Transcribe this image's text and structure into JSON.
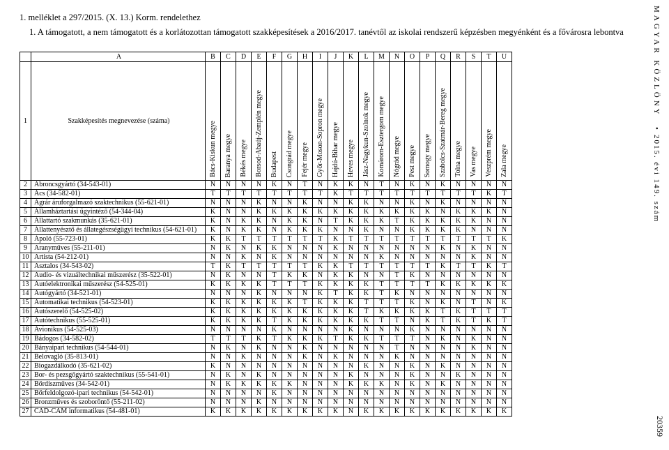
{
  "header": "1. melléklet a 297/2015. (X. 13.) Korm. rendelethez",
  "subtitle": "1. A támogatott, a nem támogatott és a korlátozottan támogatott szakképesítések a 2016/2017. tanévtől az iskolai rendszerű képzésben megyénként és a fővárosra lebontva",
  "letterRowPre": [
    "",
    "A"
  ],
  "letterRow": [
    "B",
    "C",
    "D",
    "E",
    "F",
    "G",
    "H",
    "I",
    "J",
    "K",
    "L",
    "M",
    "N",
    "O",
    "P",
    "Q",
    "R",
    "S",
    "T",
    "U"
  ],
  "row1": {
    "num": "1",
    "label": "Szakképesítés megnevezése (száma)"
  },
  "columns": [
    "Bács-Kiskun megye",
    "Baranya megye",
    "Békés megye",
    "Borsod-Abaúj-Zemplén megye",
    "Budapest",
    "Csongrád megye",
    "Fejér megye",
    "Győr-Moson-Sopron megye",
    "Hajdú-Bihar megye",
    "Heves megye",
    "Jász-Nagykun-Szolnok megye",
    "Komárom-Esztergom megye",
    "Nógrád megye",
    "Pest megye",
    "Somogy megye",
    "Szabolcs-Szatmár-Bereg megye",
    "Tolna megye",
    "Vas megye",
    "Veszprém megye",
    "Zala megye"
  ],
  "rows": [
    {
      "n": "2",
      "name": "Abroncsgyártó (34-543-01)",
      "c": [
        "N",
        "N",
        "N",
        "N",
        "K",
        "N",
        "T",
        "N",
        "K",
        "K",
        "N",
        "T",
        "N",
        "K",
        "N",
        "K",
        "N",
        "N",
        "N",
        "N"
      ]
    },
    {
      "n": "3",
      "name": "Ács (34-582-01)",
      "c": [
        "T",
        "T",
        "T",
        "T",
        "T",
        "T",
        "T",
        "T",
        "K",
        "T",
        "T",
        "T",
        "T",
        "T",
        "T",
        "T",
        "T",
        "T",
        "K",
        "T"
      ]
    },
    {
      "n": "4",
      "name": "Agrár áruforgalmazó szaktechnikus (55-621-01)",
      "c": [
        "N",
        "N",
        "N",
        "K",
        "N",
        "N",
        "K",
        "N",
        "N",
        "K",
        "K",
        "N",
        "N",
        "K",
        "N",
        "K",
        "N",
        "N",
        "N",
        "N"
      ]
    },
    {
      "n": "5",
      "name": "Államháztartási ügyintéző (54-344-04)",
      "c": [
        "K",
        "N",
        "N",
        "K",
        "K",
        "K",
        "K",
        "K",
        "K",
        "K",
        "K",
        "K",
        "K",
        "K",
        "K",
        "N",
        "K",
        "K",
        "K",
        "N"
      ]
    },
    {
      "n": "6",
      "name": "Állattartó szakmunkás (35-621-01)",
      "c": [
        "K",
        "N",
        "K",
        "K",
        "N",
        "K",
        "K",
        "N",
        "T",
        "K",
        "K",
        "K",
        "T",
        "K",
        "K",
        "K",
        "K",
        "K",
        "N",
        "N"
      ]
    },
    {
      "n": "7",
      "name": "Állattenyésztő és állategészségügyi technikus (54-621-01)",
      "c": [
        "K",
        "N",
        "K",
        "K",
        "N",
        "K",
        "K",
        "K",
        "N",
        "N",
        "K",
        "N",
        "N",
        "K",
        "K",
        "K",
        "K",
        "N",
        "N",
        "N"
      ]
    },
    {
      "n": "8",
      "name": "Ápoló (55-723-01)",
      "c": [
        "K",
        "K",
        "T",
        "T",
        "T",
        "T",
        "T",
        "T",
        "K",
        "T",
        "T",
        "T",
        "T",
        "T",
        "T",
        "T",
        "T",
        "T",
        "T",
        "K"
      ]
    },
    {
      "n": "9",
      "name": "Aranyműves (55-211-01)",
      "c": [
        "N",
        "K",
        "N",
        "K",
        "K",
        "N",
        "N",
        "N",
        "K",
        "N",
        "N",
        "N",
        "N",
        "N",
        "N",
        "K",
        "N",
        "K",
        "N",
        "N"
      ]
    },
    {
      "n": "10",
      "name": "Artista (54-212-01)",
      "c": [
        "N",
        "N",
        "K",
        "N",
        "K",
        "N",
        "N",
        "N",
        "N",
        "N",
        "N",
        "K",
        "N",
        "N",
        "N",
        "N",
        "N",
        "K",
        "N",
        "N"
      ]
    },
    {
      "n": "11",
      "name": "Asztalos (34-543-02)",
      "c": [
        "T",
        "K",
        "T",
        "T",
        "T",
        "T",
        "T",
        "K",
        "K",
        "T",
        "T",
        "T",
        "T",
        "T",
        "T",
        "K",
        "T",
        "T",
        "K",
        "T"
      ]
    },
    {
      "n": "12",
      "name": "Audio- és vizuáltechnikai műszerész (35-522-01)",
      "c": [
        "N",
        "K",
        "N",
        "N",
        "T",
        "K",
        "K",
        "N",
        "K",
        "K",
        "N",
        "N",
        "T",
        "K",
        "N",
        "N",
        "N",
        "N",
        "N",
        "N"
      ]
    },
    {
      "n": "13",
      "name": "Autóelektronikai műszerész (54-525-01)",
      "c": [
        "K",
        "K",
        "K",
        "K",
        "T",
        "T",
        "T",
        "K",
        "K",
        "K",
        "K",
        "T",
        "T",
        "T",
        "T",
        "K",
        "K",
        "K",
        "K",
        "K"
      ]
    },
    {
      "n": "14",
      "name": "Autógyártó (34-521-01)",
      "c": [
        "N",
        "N",
        "N",
        "K",
        "N",
        "N",
        "N",
        "K",
        "T",
        "K",
        "K",
        "T",
        "K",
        "N",
        "N",
        "N",
        "N",
        "N",
        "N",
        "N"
      ]
    },
    {
      "n": "15",
      "name": "Automatikai technikus (54-523-01)",
      "c": [
        "K",
        "K",
        "K",
        "K",
        "K",
        "K",
        "T",
        "K",
        "K",
        "K",
        "T",
        "T",
        "T",
        "K",
        "N",
        "K",
        "N",
        "T",
        "N",
        "K"
      ]
    },
    {
      "n": "16",
      "name": "Autószerelő (54-525-02)",
      "c": [
        "K",
        "K",
        "K",
        "K",
        "K",
        "K",
        "K",
        "K",
        "K",
        "K",
        "T",
        "K",
        "K",
        "K",
        "K",
        "T",
        "K",
        "T",
        "T",
        "T"
      ]
    },
    {
      "n": "17",
      "name": "Autótechnikus (55-525-01)",
      "c": [
        "K",
        "K",
        "K",
        "K",
        "T",
        "K",
        "K",
        "K",
        "K",
        "K",
        "K",
        "T",
        "T",
        "N",
        "K",
        "T",
        "K",
        "T",
        "K",
        "T"
      ]
    },
    {
      "n": "18",
      "name": "Avionikus (54-525-03)",
      "c": [
        "N",
        "N",
        "N",
        "N",
        "K",
        "N",
        "N",
        "N",
        "N",
        "K",
        "N",
        "N",
        "N",
        "K",
        "N",
        "N",
        "N",
        "N",
        "N",
        "N"
      ]
    },
    {
      "n": "19",
      "name": "Bádogos (34-582-02)",
      "c": [
        "T",
        "T",
        "T",
        "K",
        "T",
        "K",
        "K",
        "K",
        "T",
        "K",
        "K",
        "T",
        "T",
        "T",
        "N",
        "K",
        "N",
        "K",
        "N",
        "N"
      ]
    },
    {
      "n": "20",
      "name": "Bányaipari technikus (54-544-01)",
      "c": [
        "N",
        "K",
        "N",
        "K",
        "N",
        "N",
        "K",
        "N",
        "N",
        "N",
        "N",
        "N",
        "T",
        "N",
        "N",
        "N",
        "N",
        "K",
        "N",
        "N"
      ]
    },
    {
      "n": "21",
      "name": "Belovagló (35-813-01)",
      "c": [
        "N",
        "N",
        "K",
        "N",
        "N",
        "N",
        "K",
        "N",
        "K",
        "N",
        "N",
        "N",
        "K",
        "N",
        "N",
        "N",
        "N",
        "N",
        "N",
        "N"
      ]
    },
    {
      "n": "22",
      "name": "Biogazdálkodó (35-621-02)",
      "c": [
        "K",
        "N",
        "N",
        "N",
        "N",
        "N",
        "N",
        "N",
        "N",
        "N",
        "K",
        "N",
        "N",
        "K",
        "N",
        "K",
        "N",
        "N",
        "N",
        "N"
      ]
    },
    {
      "n": "23",
      "name": "Bor- és pezsgőgyártó szaktechnikus (55-541-01)",
      "c": [
        "N",
        "K",
        "N",
        "K",
        "N",
        "N",
        "N",
        "N",
        "N",
        "K",
        "N",
        "N",
        "N",
        "K",
        "N",
        "N",
        "K",
        "N",
        "N",
        "N"
      ]
    },
    {
      "n": "24",
      "name": "Bőrdíszműves (34-542-01)",
      "c": [
        "N",
        "K",
        "K",
        "K",
        "K",
        "K",
        "N",
        "N",
        "N",
        "K",
        "K",
        "K",
        "N",
        "K",
        "N",
        "K",
        "N",
        "N",
        "N",
        "N"
      ]
    },
    {
      "n": "25",
      "name": "Bőrfeldolgozó-ipari technikus (54-542-01)",
      "c": [
        "N",
        "N",
        "N",
        "N",
        "K",
        "N",
        "N",
        "N",
        "N",
        "N",
        "N",
        "N",
        "N",
        "N",
        "N",
        "N",
        "N",
        "N",
        "N",
        "N"
      ]
    },
    {
      "n": "26",
      "name": "Bronzműves és szoboröntő (55-211-02)",
      "c": [
        "N",
        "N",
        "N",
        "K",
        "N",
        "N",
        "N",
        "N",
        "N",
        "N",
        "N",
        "N",
        "N",
        "N",
        "N",
        "N",
        "N",
        "N",
        "N",
        "N"
      ]
    },
    {
      "n": "27",
      "name": "CAD-CAM informatikus (54-481-01)",
      "c": [
        "K",
        "K",
        "K",
        "K",
        "K",
        "K",
        "K",
        "K",
        "K",
        "N",
        "K",
        "K",
        "K",
        "K",
        "K",
        "K",
        "K",
        "K",
        "K",
        "K"
      ]
    }
  ],
  "side": {
    "magazine": "MAGYAR KÖZLÖNY",
    "issue": "2015. évi 149. szám",
    "page": "20359"
  }
}
